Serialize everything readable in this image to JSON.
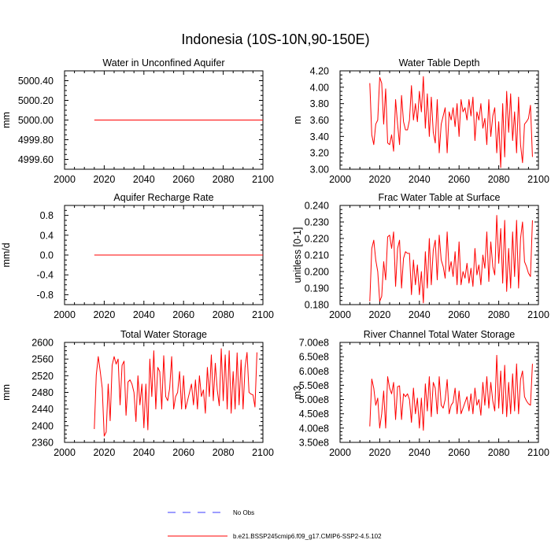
{
  "title": "Indonesia (10S-10N,90-150E)",
  "colors": {
    "series": "#ff0000",
    "no_obs": "#3b3bff",
    "axis": "#000000"
  },
  "legend": {
    "no_obs_label": "No Obs",
    "series_label": "b.e21.BSSP245cmip6.f09_g17.CMIP6-SSP2-4.5.102"
  },
  "chart_data": [
    {
      "type": "line",
      "title": "Water in Unconfined Aquifer",
      "ylabel": "mm",
      "xlim": [
        2000,
        2100
      ],
      "ylim": [
        4999.5,
        5000.5
      ],
      "xticks": [
        2000,
        2020,
        2040,
        2060,
        2080,
        2100
      ],
      "xtick_labels": [
        "2000",
        "2020",
        "2040",
        "2060",
        "2080",
        "2100"
      ],
      "yticks": [
        4999.6,
        4999.8,
        5000.0,
        5000.2,
        5000.4
      ],
      "ytick_labels": [
        "4999.60",
        "4999.80",
        "5000.00",
        "5000.20",
        "5000.40"
      ],
      "series": [
        {
          "name": "b.e21.BSSP245cmip6.f09_g17.CMIP6-SSP2-4.5.102",
          "x_start": 2015,
          "x_step": 1,
          "values": [
            5000,
            5000,
            5000,
            5000,
            5000,
            5000,
            5000,
            5000,
            5000,
            5000,
            5000,
            5000,
            5000,
            5000,
            5000,
            5000,
            5000,
            5000,
            5000,
            5000,
            5000,
            5000,
            5000,
            5000,
            5000,
            5000,
            5000,
            5000,
            5000,
            5000,
            5000,
            5000,
            5000,
            5000,
            5000,
            5000,
            5000,
            5000,
            5000,
            5000,
            5000,
            5000,
            5000,
            5000,
            5000,
            5000,
            5000,
            5000,
            5000,
            5000,
            5000,
            5000,
            5000,
            5000,
            5000,
            5000,
            5000,
            5000,
            5000,
            5000,
            5000,
            5000,
            5000,
            5000,
            5000,
            5000,
            5000,
            5000,
            5000,
            5000,
            5000,
            5000,
            5000,
            5000,
            5000,
            5000,
            5000,
            5000,
            5000,
            5000,
            5000,
            5000,
            5000,
            5000,
            5000,
            5000
          ]
        }
      ]
    },
    {
      "type": "line",
      "title": "Water Table Depth",
      "ylabel": "m",
      "xlim": [
        2000,
        2100
      ],
      "ylim": [
        3.0,
        4.2
      ],
      "xticks": [
        2000,
        2020,
        2040,
        2060,
        2080,
        2100
      ],
      "xtick_labels": [
        "2000",
        "2020",
        "2040",
        "2060",
        "2080",
        "2100"
      ],
      "yticks": [
        3.0,
        3.2,
        3.4,
        3.6,
        3.8,
        4.0,
        4.2
      ],
      "ytick_labels": [
        "3.00",
        "3.20",
        "3.40",
        "3.60",
        "3.80",
        "4.00",
        "4.20"
      ],
      "series": [
        {
          "name": "b.e21.BSSP245cmip6.f09_g17.CMIP6-SSP2-4.5.102",
          "x_start": 2015,
          "x_step": 1,
          "values": [
            4.05,
            3.42,
            3.3,
            3.55,
            3.6,
            4.12,
            4.05,
            3.55,
            3.98,
            3.32,
            3.3,
            3.42,
            3.22,
            3.85,
            3.55,
            3.3,
            3.9,
            3.58,
            3.48,
            3.48,
            3.6,
            4.02,
            3.6,
            3.8,
            3.58,
            3.95,
            3.7,
            4.13,
            3.5,
            3.92,
            3.4,
            3.88,
            3.45,
            3.32,
            3.85,
            3.2,
            3.55,
            3.65,
            3.75,
            3.2,
            3.7,
            3.6,
            3.75,
            3.52,
            3.8,
            3.4,
            3.85,
            3.7,
            3.75,
            3.6,
            3.85,
            3.65,
            3.88,
            3.35,
            3.7,
            3.6,
            3.8,
            3.5,
            3.62,
            3.3,
            3.85,
            3.4,
            3.65,
            3.75,
            3.2,
            3.58,
            3.02,
            3.8,
            3.15,
            3.95,
            3.45,
            3.92,
            3.35,
            3.7,
            3.2,
            3.88,
            3.3,
            3.08,
            3.55,
            3.58,
            3.62,
            3.78,
            3.15
          ]
        }
      ]
    },
    {
      "type": "line",
      "title": "Aquifer Recharge Rate",
      "ylabel": "mm/d",
      "xlim": [
        2000,
        2100
      ],
      "ylim": [
        -1.0,
        1.0
      ],
      "xticks": [
        2000,
        2020,
        2040,
        2060,
        2080,
        2100
      ],
      "xtick_labels": [
        "2000",
        "2020",
        "2040",
        "2060",
        "2080",
        "2100"
      ],
      "yticks": [
        -0.8,
        -0.4,
        0.0,
        0.4,
        0.8
      ],
      "ytick_labels": [
        "-0.8",
        "-0.4",
        "0.0",
        "0.4",
        "0.8"
      ],
      "series": [
        {
          "name": "b.e21.BSSP245cmip6.f09_g17.CMIP6-SSP2-4.5.102",
          "x_start": 2015,
          "x_step": 1,
          "values": [
            0,
            0,
            0,
            0,
            0,
            0,
            0,
            0,
            0,
            0,
            0,
            0,
            0,
            0,
            0,
            0,
            0,
            0,
            0,
            0,
            0,
            0,
            0,
            0,
            0,
            0,
            0,
            0,
            0,
            0,
            0,
            0,
            0,
            0,
            0,
            0,
            0,
            0,
            0,
            0,
            0,
            0,
            0,
            0,
            0,
            0,
            0,
            0,
            0,
            0,
            0,
            0,
            0,
            0,
            0,
            0,
            0,
            0,
            0,
            0,
            0,
            0,
            0,
            0,
            0,
            0,
            0,
            0,
            0,
            0,
            0,
            0,
            0,
            0,
            0,
            0,
            0,
            0,
            0,
            0,
            0,
            0,
            0,
            0,
            0,
            0
          ]
        }
      ]
    },
    {
      "type": "line",
      "title": "Frac Water Table at Surface",
      "ylabel": "unitless [0-1]",
      "xlim": [
        2000,
        2100
      ],
      "ylim": [
        0.18,
        0.24
      ],
      "xticks": [
        2000,
        2020,
        2040,
        2060,
        2080,
        2100
      ],
      "xtick_labels": [
        "2000",
        "2020",
        "2040",
        "2060",
        "2080",
        "2100"
      ],
      "yticks": [
        0.18,
        0.19,
        0.2,
        0.21,
        0.22,
        0.23,
        0.24
      ],
      "ytick_labels": [
        "0.180",
        "0.190",
        "0.200",
        "0.210",
        "0.220",
        "0.230",
        "0.240"
      ],
      "series": [
        {
          "name": "b.e21.BSSP245cmip6.f09_g17.CMIP6-SSP2-4.5.102",
          "x_start": 2015,
          "x_step": 1,
          "values": [
            0.182,
            0.214,
            0.219,
            0.207,
            0.2,
            0.182,
            0.185,
            0.206,
            0.195,
            0.221,
            0.222,
            0.214,
            0.224,
            0.191,
            0.214,
            0.219,
            0.19,
            0.208,
            0.212,
            0.211,
            0.211,
            0.186,
            0.207,
            0.192,
            0.204,
            0.186,
            0.2,
            0.181,
            0.212,
            0.19,
            0.22,
            0.192,
            0.213,
            0.219,
            0.195,
            0.222,
            0.207,
            0.203,
            0.196,
            0.224,
            0.2,
            0.206,
            0.197,
            0.212,
            0.192,
            0.218,
            0.192,
            0.2,
            0.196,
            0.205,
            0.193,
            0.202,
            0.191,
            0.214,
            0.198,
            0.204,
            0.192,
            0.21,
            0.202,
            0.224,
            0.194,
            0.218,
            0.203,
            0.198,
            0.234,
            0.205,
            0.226,
            0.193,
            0.231,
            0.188,
            0.214,
            0.19,
            0.224,
            0.197,
            0.231,
            0.19,
            0.22,
            0.23,
            0.206,
            0.203,
            0.199,
            0.197,
            0.231
          ]
        }
      ]
    },
    {
      "type": "line",
      "title": "Total Water Storage",
      "ylabel": "mm",
      "xlim": [
        2000,
        2100
      ],
      "ylim": [
        2360,
        2600
      ],
      "xticks": [
        2000,
        2020,
        2040,
        2060,
        2080,
        2100
      ],
      "xtick_labels": [
        "2000",
        "2020",
        "2040",
        "2060",
        "2080",
        "2100"
      ],
      "yticks": [
        2360,
        2400,
        2440,
        2480,
        2520,
        2560,
        2600
      ],
      "ytick_labels": [
        "2360",
        "2400",
        "2440",
        "2480",
        "2520",
        "2560",
        "2600"
      ],
      "series": [
        {
          "name": "b.e21.BSSP245cmip6.f09_g17.CMIP6-SSP2-4.5.102",
          "x_start": 2015,
          "x_step": 1,
          "values": [
            2392,
            2522,
            2566,
            2530,
            2490,
            2375,
            2385,
            2500,
            2412,
            2545,
            2566,
            2548,
            2560,
            2450,
            2545,
            2555,
            2425,
            2505,
            2510,
            2500,
            2480,
            2410,
            2520,
            2450,
            2500,
            2395,
            2500,
            2390,
            2560,
            2470,
            2580,
            2440,
            2540,
            2530,
            2440,
            2568,
            2470,
            2460,
            2490,
            2566,
            2440,
            2470,
            2480,
            2530,
            2440,
            2520,
            2440,
            2460,
            2480,
            2500,
            2450,
            2510,
            2440,
            2520,
            2470,
            2486,
            2430,
            2540,
            2470,
            2570,
            2460,
            2550,
            2485,
            2448,
            2585,
            2460,
            2570,
            2440,
            2580,
            2430,
            2530,
            2440,
            2575,
            2450,
            2558,
            2440,
            2540,
            2576,
            2480,
            2476,
            2474,
            2445,
            2576
          ]
        }
      ]
    },
    {
      "type": "line",
      "title": "River Channel Total Water Storage",
      "ylabel": "m3",
      "xlim": [
        2000,
        2100
      ],
      "ylim": [
        350000000,
        700000000
      ],
      "xticks": [
        2000,
        2020,
        2040,
        2060,
        2080,
        2100
      ],
      "xtick_labels": [
        "2000",
        "2020",
        "2040",
        "2060",
        "2080",
        "2100"
      ],
      "yticks": [
        350000000,
        400000000,
        450000000,
        500000000,
        550000000,
        600000000,
        650000000,
        700000000
      ],
      "ytick_labels": [
        "3.50e8",
        "4.00e8",
        "4.50e8",
        "5.00e8",
        "5.50e8",
        "6.00e8",
        "6.50e8",
        "7.00e8"
      ],
      "series": [
        {
          "name": "b.e21.BSSP245cmip6.f09_g17.CMIP6-SSP2-4.5.102",
          "x_start": 2015,
          "x_step": 1,
          "values": [
            406000000,
            572000000,
            540000000,
            480000000,
            505000000,
            400000000,
            450000000,
            530000000,
            400000000,
            580000000,
            540000000,
            520000000,
            560000000,
            430000000,
            545000000,
            548000000,
            430000000,
            520000000,
            510000000,
            520000000,
            500000000,
            420000000,
            540000000,
            450000000,
            505000000,
            400000000,
            505000000,
            392000000,
            555000000,
            460000000,
            580000000,
            440000000,
            560000000,
            540000000,
            450000000,
            580000000,
            480000000,
            470000000,
            500000000,
            570000000,
            450000000,
            480000000,
            490000000,
            540000000,
            450000000,
            530000000,
            450000000,
            470000000,
            490000000,
            510000000,
            460000000,
            520000000,
            450000000,
            540000000,
            480000000,
            500000000,
            445000000,
            560000000,
            480000000,
            580000000,
            470000000,
            560000000,
            495000000,
            460000000,
            655000000,
            470000000,
            600000000,
            450000000,
            620000000,
            440000000,
            560000000,
            450000000,
            590000000,
            460000000,
            625000000,
            450000000,
            570000000,
            600000000,
            510000000,
            495000000,
            485000000,
            480000000,
            625000000
          ]
        }
      ]
    }
  ]
}
